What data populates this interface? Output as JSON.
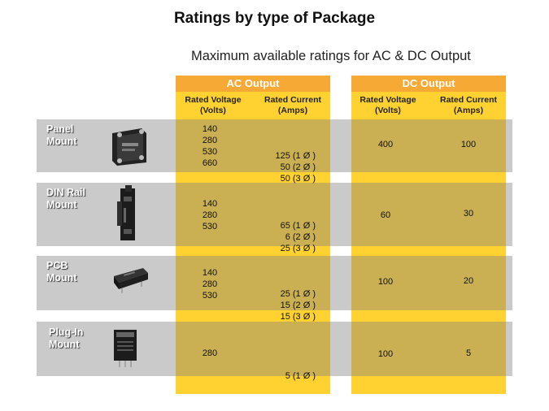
{
  "title": "Ratings by type of Package",
  "subtitle": "Maximum available ratings for AC & DC Output",
  "groups": {
    "ac": {
      "label": "AC Output",
      "voltage_header": [
        "Rated Voltage",
        "(Volts)"
      ],
      "current_header": [
        "Rated Current",
        "(Amps)"
      ]
    },
    "dc": {
      "label": "DC Output",
      "voltage_header": [
        "Rated Voltage",
        "(Volts)"
      ],
      "current_header": [
        "Rated Current",
        "(Amps)"
      ]
    }
  },
  "rows": [
    {
      "label": [
        "Panel",
        "Mount"
      ],
      "image": "panel-mount-relay-icon",
      "ac_voltage": [
        "140",
        "280",
        "530",
        "660"
      ],
      "ac_current": [
        "125 (1 Ø )",
        "50 (2 Ø )",
        "50 (3 Ø )"
      ],
      "dc_voltage": "400",
      "dc_current": "100"
    },
    {
      "label": [
        "DIN Rail",
        "Mount"
      ],
      "image": "din-rail-relay-icon",
      "ac_voltage": [
        "140",
        "280",
        "530"
      ],
      "ac_current": [
        "65 (1 Ø )",
        "6 (2 Ø )",
        "25 (3 Ø )"
      ],
      "dc_voltage": "60",
      "dc_current": "30"
    },
    {
      "label": [
        "PCB",
        "Mount"
      ],
      "image": "pcb-relay-icon",
      "ac_voltage": [
        "140",
        "280",
        "530"
      ],
      "ac_current": [
        "25 (1 Ø )",
        "15 (2 Ø )",
        "15 (3 Ø )"
      ],
      "dc_voltage": "100",
      "dc_current": "20"
    },
    {
      "label": [
        "Plug-In",
        "Mount"
      ],
      "image": "plug-in-relay-icon",
      "ac_voltage": [
        "280"
      ],
      "ac_current": [
        "5 (1 Ø )"
      ],
      "dc_voltage": "100",
      "dc_current": "5"
    }
  ],
  "colors": {
    "column_fill": "#ffd231",
    "header_fill": "#f6a935",
    "band_fill": "#808080"
  }
}
